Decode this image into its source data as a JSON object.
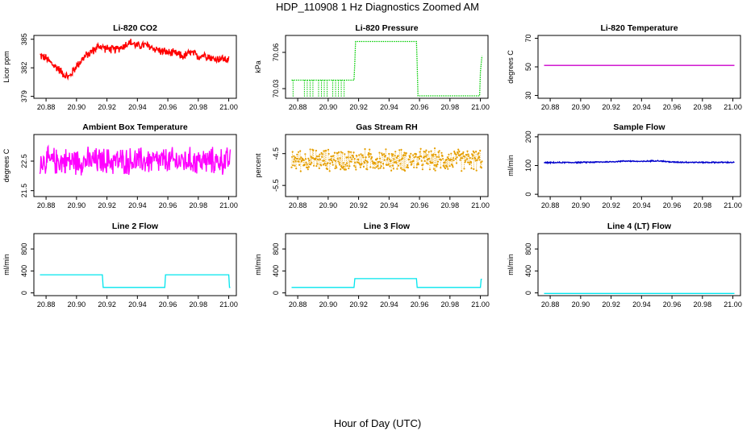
{
  "page": {
    "title": "HDP_110908  1 Hz Diagnostics Zoomed AM",
    "xlabel": "Hour of Day (UTC)"
  },
  "chart_data": [
    {
      "id": "co2",
      "type": "line",
      "title": "Li-820 CO2",
      "ylabel": "Licor ppm",
      "color": "#ff0000",
      "xlim": [
        20.872,
        21.005
      ],
      "ylim": [
        378.8,
        385.4
      ],
      "yticks": [
        379,
        382,
        385
      ],
      "xticks": [
        20.88,
        20.9,
        20.92,
        20.94,
        20.96,
        20.98,
        21.0
      ],
      "xticklabels": [
        "20.88",
        "20.90",
        "20.92",
        "20.94",
        "20.96",
        "20.98",
        "21.00"
      ],
      "series": [
        {
          "name": "CO2",
          "x": [
            20.876,
            20.88,
            20.884,
            20.888,
            20.892,
            20.895,
            20.9,
            20.905,
            20.91,
            20.915,
            20.92,
            20.925,
            20.93,
            20.935,
            20.94,
            20.945,
            20.95,
            20.955,
            20.96,
            20.965,
            20.97,
            20.975,
            20.98,
            20.985,
            20.99,
            20.995,
            21.0
          ],
          "values": [
            383.3,
            383.0,
            382.4,
            381.9,
            381.3,
            381.0,
            382.2,
            383.1,
            383.7,
            384.3,
            384.0,
            383.9,
            384.2,
            384.7,
            384.3,
            384.4,
            384.1,
            383.8,
            383.6,
            383.5,
            383.2,
            383.6,
            383.2,
            383.4,
            382.9,
            383.0,
            382.8
          ]
        }
      ],
      "noise": 0.45,
      "mode": "line"
    },
    {
      "id": "pressure",
      "type": "line",
      "title": "Li-820 Pressure",
      "ylabel": "kPa",
      "color": "#00cc00",
      "xlim": [
        20.872,
        21.005
      ],
      "ylim": [
        70.022,
        70.074
      ],
      "yticks": [
        70.03,
        70.06
      ],
      "xticks": [
        20.88,
        20.9,
        20.92,
        20.94,
        20.96,
        20.98,
        21.0
      ],
      "xticklabels": [
        "20.88",
        "20.90",
        "20.92",
        "20.94",
        "20.96",
        "20.98",
        "21.00"
      ],
      "series": [
        {
          "name": "Pressure",
          "x": [
            20.876,
            20.917,
            20.9175,
            20.918,
            20.958,
            20.9585,
            20.959,
            20.9995,
            21.0,
            21.001
          ],
          "values": [
            70.037,
            70.037,
            70.052,
            70.069,
            70.069,
            70.05,
            70.024,
            70.024,
            70.044,
            70.057
          ]
        }
      ],
      "noise": 0,
      "mode": "line"
    },
    {
      "id": "temp",
      "type": "line",
      "title": "Li-820 Temperature",
      "ylabel": "degrees C",
      "color": "#cc00cc",
      "xlim": [
        20.872,
        21.005
      ],
      "ylim": [
        28,
        72
      ],
      "yticks": [
        30,
        50,
        70
      ],
      "xticks": [
        20.88,
        20.9,
        20.92,
        20.94,
        20.96,
        20.98,
        21.0
      ],
      "xticklabels": [
        "20.88",
        "20.90",
        "20.92",
        "20.94",
        "20.96",
        "20.98",
        "21.00"
      ],
      "series": [
        {
          "name": "Temperature",
          "x": [
            20.876,
            21.001
          ],
          "values": [
            51,
            51
          ]
        }
      ],
      "noise": 0,
      "mode": "line"
    },
    {
      "id": "ambient",
      "type": "line",
      "title": "Ambient Box Temperature",
      "ylabel": "degrees C",
      "color": "#ff00ff",
      "xlim": [
        20.872,
        21.005
      ],
      "ylim": [
        21.3,
        23.4
      ],
      "yticks": [
        21.5,
        22.5
      ],
      "xticks": [
        20.88,
        20.9,
        20.92,
        20.94,
        20.96,
        20.98,
        21.0
      ],
      "xticklabels": [
        "20.88",
        "20.90",
        "20.92",
        "20.94",
        "20.96",
        "20.98",
        "21.00"
      ],
      "series": [
        {
          "name": "Ambient",
          "x": [
            20.876,
            21.001
          ],
          "values": [
            22.5,
            22.5
          ]
        }
      ],
      "noise": 0.45,
      "mode": "line"
    },
    {
      "id": "rh",
      "type": "scatter",
      "title": "Gas Stream RH",
      "ylabel": "percent",
      "color": "#e69f00",
      "xlim": [
        20.872,
        21.005
      ],
      "ylim": [
        -5.85,
        -3.9
      ],
      "yticks": [
        -5.5,
        -4.5
      ],
      "xticks": [
        20.88,
        20.9,
        20.92,
        20.94,
        20.96,
        20.98,
        21.0
      ],
      "xticklabels": [
        "20.88",
        "20.90",
        "20.92",
        "20.94",
        "20.96",
        "20.98",
        "21.00"
      ],
      "series": [
        {
          "name": "RH",
          "x": [
            20.876,
            21.001
          ],
          "values": [
            -4.7,
            -4.7
          ]
        }
      ],
      "noise": 0.33,
      "mode": "points"
    },
    {
      "id": "sampleflow",
      "type": "line",
      "title": "Sample Flow",
      "ylabel": "ml/min",
      "color": "#0000cc",
      "xlim": [
        20.872,
        21.005
      ],
      "ylim": [
        -8,
        208
      ],
      "yticks": [
        0,
        100,
        200
      ],
      "xticks": [
        20.88,
        20.9,
        20.92,
        20.94,
        20.96,
        20.98,
        21.0
      ],
      "xticklabels": [
        "20.88",
        "20.90",
        "20.92",
        "20.94",
        "20.96",
        "20.98",
        "21.00"
      ],
      "series": [
        {
          "name": "Sample",
          "x": [
            20.876,
            20.9,
            20.92,
            20.93,
            20.94,
            20.95,
            20.96,
            20.98,
            21.001
          ],
          "values": [
            110,
            111,
            113,
            116,
            114,
            117,
            112,
            111,
            111
          ]
        }
      ],
      "noise": 2,
      "mode": "line"
    },
    {
      "id": "line2",
      "type": "line",
      "title": "Line 2 Flow",
      "ylabel": "ml/min",
      "color": "#00e5ee",
      "xlim": [
        20.872,
        21.005
      ],
      "ylim": [
        -50,
        1080
      ],
      "yticks": [
        0,
        400,
        800
      ],
      "xticks": [
        20.88,
        20.9,
        20.92,
        20.94,
        20.96,
        20.98,
        21.0
      ],
      "xticklabels": [
        "20.88",
        "20.90",
        "20.92",
        "20.94",
        "20.96",
        "20.98",
        "21.00"
      ],
      "series": [
        {
          "name": "Line2",
          "x": [
            20.876,
            20.917,
            20.9175,
            20.958,
            20.9585,
            21.0,
            21.0005,
            21.001
          ],
          "values": [
            330,
            330,
            100,
            100,
            330,
            330,
            100,
            100
          ]
        }
      ],
      "noise": 0,
      "mode": "line"
    },
    {
      "id": "line3",
      "type": "line",
      "title": "Line 3 Flow",
      "ylabel": "ml/min",
      "color": "#00e5ee",
      "xlim": [
        20.872,
        21.005
      ],
      "ylim": [
        -50,
        1080
      ],
      "yticks": [
        0,
        400,
        800
      ],
      "xticks": [
        20.88,
        20.9,
        20.92,
        20.94,
        20.96,
        20.98,
        21.0
      ],
      "xticklabels": [
        "20.88",
        "20.90",
        "20.92",
        "20.94",
        "20.96",
        "20.98",
        "21.00"
      ],
      "series": [
        {
          "name": "Line3",
          "x": [
            20.876,
            20.917,
            20.9175,
            20.958,
            20.9585,
            21.0,
            21.0005,
            21.001
          ],
          "values": [
            100,
            100,
            260,
            260,
            100,
            100,
            250,
            250
          ]
        }
      ],
      "noise": 0,
      "mode": "line"
    },
    {
      "id": "line4",
      "type": "line",
      "title": "Line 4 (LT) Flow",
      "ylabel": "ml/min",
      "color": "#00e5ee",
      "xlim": [
        20.872,
        21.005
      ],
      "ylim": [
        -50,
        1080
      ],
      "yticks": [
        0,
        400,
        800
      ],
      "xticks": [
        20.88,
        20.9,
        20.92,
        20.94,
        20.96,
        20.98,
        21.0
      ],
      "xticklabels": [
        "20.88",
        "20.90",
        "20.92",
        "20.94",
        "20.96",
        "20.98",
        "21.00"
      ],
      "series": [
        {
          "name": "Line4",
          "x": [
            20.876,
            21.001
          ],
          "values": [
            -10,
            -10
          ]
        }
      ],
      "noise": 0,
      "mode": "line"
    }
  ]
}
